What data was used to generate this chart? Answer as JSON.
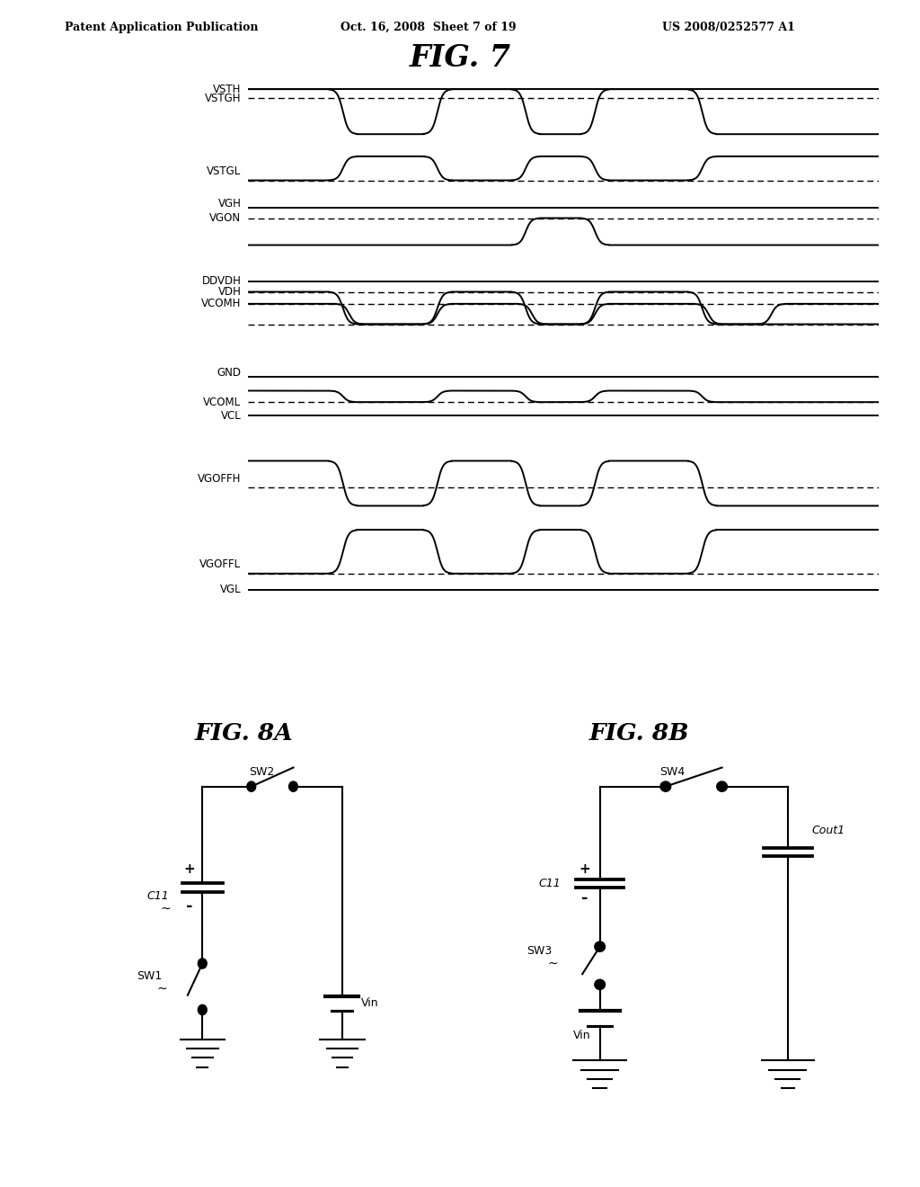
{
  "header_left": "Patent Application Publication",
  "header_mid": "Oct. 16, 2008  Sheet 7 of 19",
  "header_right": "US 2008/0252577 A1",
  "fig7_title": "FIG. 7",
  "fig8a_title": "FIG. 8A",
  "fig8b_title": "FIG. 8B",
  "t_fall1": 1.5,
  "t_rise1": 3.0,
  "t_fall2": 4.4,
  "t_rise2": 5.5,
  "t_fall3": 7.2,
  "t_rise3": 8.3,
  "tr": 0.22,
  "lw_main": 1.4,
  "lw_dash": 1.0,
  "dash_pattern": [
    5,
    3
  ]
}
